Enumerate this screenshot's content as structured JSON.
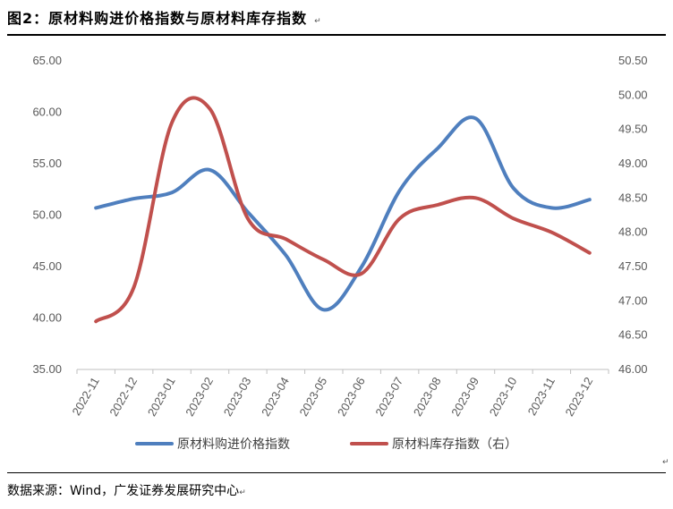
{
  "figure": {
    "title": "图2：原材料购进价格指数与原材料库存指数",
    "return_mark": "↵",
    "source": "数据来源：Wind，广发证券发展研究中心"
  },
  "chart_data": {
    "type": "line",
    "categories": [
      "2022-11",
      "2022-12",
      "2023-01",
      "2023-02",
      "2023-03",
      "2023-04",
      "2023-05",
      "2023-06",
      "2023-07",
      "2023-08",
      "2023-09",
      "2023-10",
      "2023-11",
      "2023-12"
    ],
    "series": [
      {
        "name": "原材料购进价格指数",
        "axis": "left",
        "color": "#4f7fbe",
        "values": [
          50.7,
          51.6,
          52.2,
          54.4,
          50.3,
          46.1,
          40.8,
          45.0,
          52.4,
          56.5,
          59.4,
          52.6,
          50.7,
          51.5
        ]
      },
      {
        "name": "原材料库存指数（右）",
        "axis": "right",
        "color": "#c0504d",
        "values": [
          46.7,
          47.2,
          49.6,
          49.8,
          48.2,
          47.9,
          47.6,
          47.4,
          48.2,
          48.4,
          48.5,
          48.2,
          48.0,
          47.7
        ]
      }
    ],
    "y_left": {
      "min": 35,
      "max": 65,
      "step": 5,
      "tick_labels": [
        "35.00",
        "40.00",
        "45.00",
        "50.00",
        "55.00",
        "60.00",
        "65.00"
      ]
    },
    "y_right": {
      "min": 46,
      "max": 50.5,
      "step": 0.5,
      "tick_labels": [
        "46.00",
        "46.50",
        "47.00",
        "47.50",
        "48.00",
        "48.50",
        "49.00",
        "49.50",
        "50.00",
        "50.50"
      ]
    },
    "grid": false,
    "legend_position": "bottom"
  }
}
